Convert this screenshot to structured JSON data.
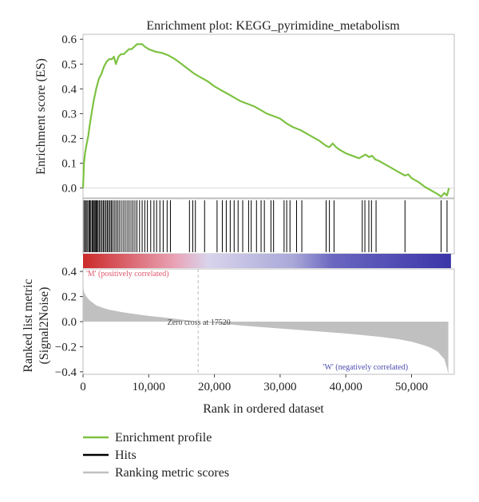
{
  "chart_data": {
    "type": "line",
    "title": "Enrichment plot: KEGG_pyrimidine_metabolism",
    "xlabel": "Rank in ordered dataset",
    "xlim": [
      0,
      56500
    ],
    "x_ticks": [
      0,
      10000,
      20000,
      30000,
      40000,
      50000
    ],
    "x_tick_labels": [
      "0",
      "10,000",
      "20,000",
      "30,000",
      "40,000",
      "50,000"
    ],
    "es_panel": {
      "ylabel": "Enrichment score (ES)",
      "ylim": [
        -0.04,
        0.62
      ],
      "y_ticks": [
        0.0,
        0.1,
        0.2,
        0.3,
        0.4,
        0.5,
        0.6
      ],
      "y_tick_labels": [
        "0.0",
        "0.1",
        "0.2",
        "0.3",
        "0.4",
        "0.5",
        "0.6"
      ],
      "series": [
        {
          "name": "Enrichment profile",
          "color": "#7dc242",
          "x": [
            0,
            150,
            300,
            500,
            800,
            1000,
            1300,
            1600,
            2000,
            2400,
            2800,
            3200,
            3600,
            4000,
            4400,
            4700,
            5000,
            5400,
            5800,
            6200,
            6600,
            7000,
            7400,
            7800,
            8200,
            8600,
            9000,
            9400,
            10000,
            11000,
            12000,
            13000,
            14000,
            15000,
            16000,
            17000,
            18000,
            19000,
            20000,
            21000,
            22000,
            23000,
            24000,
            25000,
            26000,
            27000,
            28000,
            29000,
            30000,
            31000,
            32000,
            33000,
            34000,
            35000,
            36000,
            37000,
            37500,
            38000,
            38500,
            39000,
            40000,
            41000,
            42000,
            43000,
            43500,
            44000,
            44500,
            45000,
            46000,
            47000,
            48000,
            49000,
            49500,
            50000,
            51000,
            52000,
            53000,
            54000,
            54500,
            55000,
            55400,
            55700
          ],
          "values": [
            0.0,
            0.1,
            0.14,
            0.17,
            0.21,
            0.25,
            0.3,
            0.35,
            0.4,
            0.44,
            0.46,
            0.49,
            0.51,
            0.52,
            0.52,
            0.53,
            0.5,
            0.53,
            0.54,
            0.54,
            0.55,
            0.56,
            0.56,
            0.57,
            0.58,
            0.58,
            0.58,
            0.57,
            0.56,
            0.55,
            0.545,
            0.535,
            0.52,
            0.5,
            0.48,
            0.46,
            0.445,
            0.43,
            0.41,
            0.395,
            0.38,
            0.365,
            0.35,
            0.34,
            0.33,
            0.315,
            0.3,
            0.29,
            0.28,
            0.26,
            0.245,
            0.235,
            0.22,
            0.205,
            0.19,
            0.17,
            0.165,
            0.18,
            0.165,
            0.155,
            0.14,
            0.13,
            0.12,
            0.135,
            0.125,
            0.13,
            0.115,
            0.11,
            0.095,
            0.08,
            0.065,
            0.05,
            0.055,
            0.04,
            0.025,
            0.005,
            -0.01,
            -0.025,
            -0.035,
            -0.02,
            -0.03,
            0.0
          ]
        }
      ]
    },
    "hits_panel": {
      "name": "Hits",
      "color": "#000000",
      "positions": [
        150,
        350,
        500,
        700,
        900,
        1050,
        1200,
        1400,
        1550,
        1700,
        1850,
        2000,
        2150,
        2300,
        2500,
        2700,
        2900,
        3100,
        3300,
        3500,
        3700,
        3900,
        4100,
        4300,
        4500,
        4750,
        5000,
        5250,
        5500,
        5800,
        6100,
        6400,
        6700,
        7000,
        7300,
        7600,
        7900,
        8200,
        8600,
        9000,
        9400,
        9800,
        10300,
        10800,
        11200,
        11700,
        12200,
        12800,
        13300,
        16200,
        16700,
        17100,
        18500,
        20400,
        21200,
        21800,
        22400,
        23000,
        23600,
        24300,
        25200,
        25600,
        26400,
        27100,
        27600,
        28600,
        29000,
        30600,
        31000,
        31500,
        32500,
        33300,
        37000,
        37500,
        38200,
        42500,
        42900,
        43500,
        43900,
        44600,
        49000,
        54500,
        55400
      ]
    },
    "gradient_bar": {
      "colors": [
        "#cc2a2a",
        "#e9a3b6",
        "#d9d4ec",
        "#a9a8d8",
        "#6a67c0",
        "#3b35a8"
      ],
      "stops": [
        0,
        14000,
        19000,
        32000,
        38000,
        56000
      ]
    },
    "metric_panel": {
      "ylabel": "Ranked list metric (Signal2Noise)",
      "ylim": [
        -0.42,
        0.42
      ],
      "y_ticks": [
        -0.4,
        -0.2,
        0.0,
        0.2,
        0.4
      ],
      "y_tick_labels": [
        "−0.4",
        "−0.2",
        "0.0",
        "0.2",
        "0.4"
      ],
      "fill_color": "#c0c0c0",
      "x": [
        0,
        200,
        500,
        1000,
        1500,
        2000,
        3000,
        4000,
        5000,
        6000,
        8000,
        10000,
        12000,
        14000,
        16000,
        17520,
        20000,
        25000,
        30000,
        35000,
        40000,
        45000,
        48000,
        50000,
        52000,
        53000,
        54000,
        54500,
        55000,
        55400,
        55600
      ],
      "values": [
        0.28,
        0.23,
        0.2,
        0.17,
        0.15,
        0.13,
        0.11,
        0.095,
        0.085,
        0.075,
        0.06,
        0.045,
        0.035,
        0.022,
        0.01,
        0.0,
        -0.012,
        -0.035,
        -0.055,
        -0.075,
        -0.095,
        -0.12,
        -0.14,
        -0.16,
        -0.19,
        -0.21,
        -0.24,
        -0.27,
        -0.3,
        -0.37,
        -0.42
      ],
      "zero_cross_label": "Zero cross at 17520",
      "zero_cross_x": 17520,
      "pos_label": "'M' (positively correlated)",
      "neg_label": "'W' (negatively correlated)",
      "pos_color": "#e0566b",
      "neg_color": "#4b4bb0"
    },
    "legend": [
      {
        "name": "Enrichment profile",
        "color": "#7dc242"
      },
      {
        "name": "Hits",
        "color": "#000000"
      },
      {
        "name": "Ranking metric scores",
        "color": "#c0c0c0"
      }
    ]
  }
}
